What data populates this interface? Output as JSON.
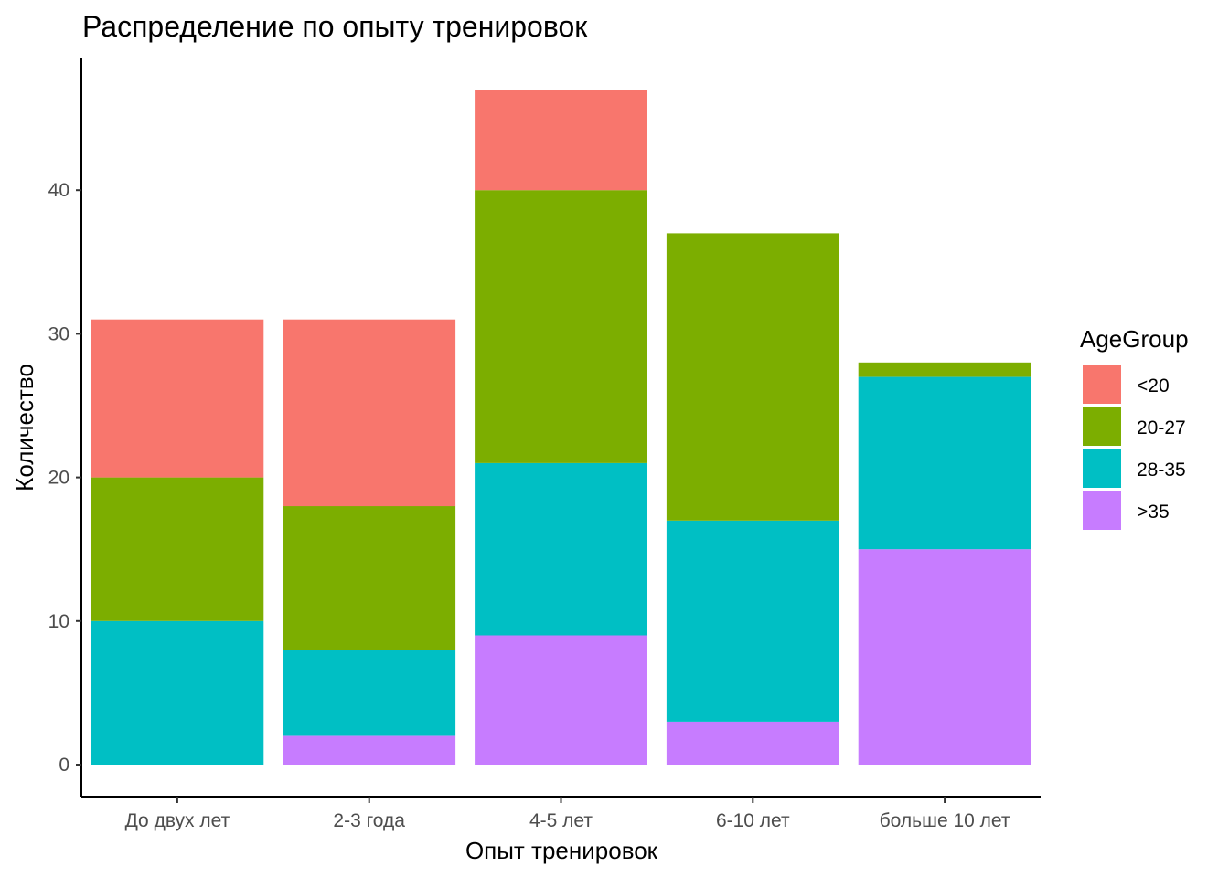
{
  "chart_data": {
    "type": "bar",
    "stacked": true,
    "title": "Распределение по опыту тренировок",
    "xlabel": "Опыт тренировок",
    "ylabel": "Количество",
    "categories": [
      "До двух лет",
      "2-3 года",
      "4-5 лет",
      "6-10 лет",
      "больше 10 лет"
    ],
    "ylim": [
      0,
      50
    ],
    "yticks": [
      0,
      10,
      20,
      30,
      40
    ],
    "grid": false,
    "legend": {
      "title": "AgeGroup",
      "position": "right"
    },
    "series": [
      {
        "name": "<20",
        "color": "#F8766D",
        "values": [
          11,
          13,
          7,
          0,
          0
        ]
      },
      {
        "name": "20-27",
        "color": "#7CAE00",
        "values": [
          10,
          10,
          19,
          20,
          1
        ]
      },
      {
        "name": "28-35",
        "color": "#00BFC4",
        "values": [
          10,
          6,
          12,
          14,
          12
        ]
      },
      {
        "name": ">35",
        "color": "#C77CFF",
        "values": [
          0,
          2,
          9,
          3,
          15
        ]
      }
    ],
    "stack_order_bottom_to_top": [
      ">35",
      "28-35",
      "20-27",
      "<20"
    ]
  }
}
